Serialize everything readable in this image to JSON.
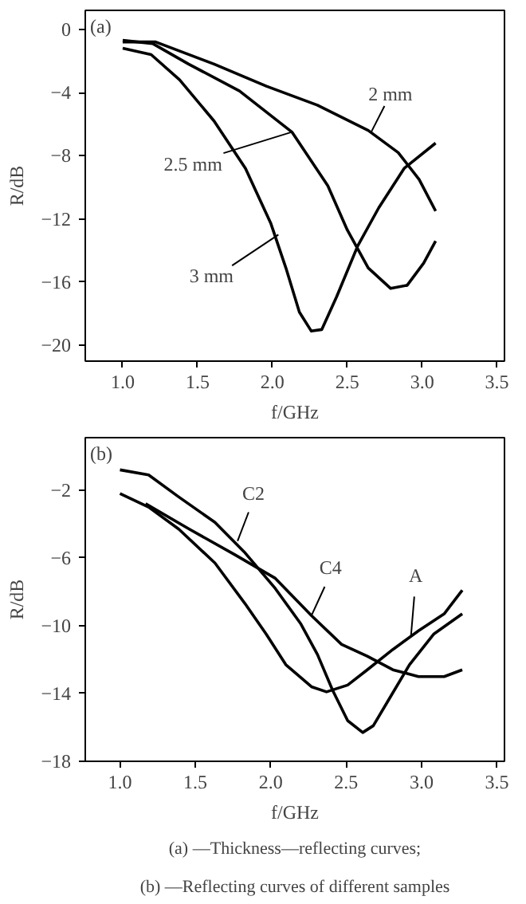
{
  "chart_data": [
    {
      "type": "line",
      "title": "(a)",
      "xlabel": "f/GHz",
      "ylabel": "R/dB",
      "xlim": [
        0.75,
        3.55
      ],
      "ylim": [
        -21,
        1.2
      ],
      "xticks": [
        {
          "value": 1,
          "label": "1.0"
        },
        1.5,
        {
          "value": 2,
          "label": "2.0"
        },
        2.5,
        {
          "value": 3,
          "label": "3.0"
        },
        3.5
      ],
      "yticks": [
        0,
        -4,
        -8,
        -12,
        -16,
        -20
      ],
      "grid": false,
      "marker": "none",
      "line_style": "solid",
      "series": [
        {
          "color": "#000000",
          "x": [
            1.0,
            1.22,
            1.61,
            1.96,
            2.3,
            2.64,
            2.84,
            2.98,
            3.09
          ],
          "values": [
            -0.8,
            -0.8,
            -2.2,
            -3.6,
            -4.8,
            -6.4,
            -7.8,
            -9.5,
            -11.5
          ]
        },
        {
          "color": "#000000",
          "x": [
            1.0,
            1.2,
            1.44,
            1.78,
            2.13,
            2.37,
            2.5,
            2.64,
            2.79,
            2.9,
            3.01,
            3.09
          ],
          "values": [
            -0.7,
            -0.9,
            -2.2,
            -3.9,
            -6.5,
            -9.9,
            -12.7,
            -15.1,
            -16.4,
            -16.2,
            -14.8,
            -13.4
          ]
        },
        {
          "color": "#000000",
          "x": [
            1.0,
            1.19,
            1.38,
            1.61,
            1.82,
            1.99,
            2.09,
            2.18,
            2.26,
            2.33,
            2.43,
            2.57,
            2.71,
            2.88,
            3.09
          ],
          "values": [
            -1.2,
            -1.6,
            -3.2,
            -5.8,
            -8.8,
            -12.3,
            -15.1,
            -17.9,
            -19.1,
            -19.0,
            -16.9,
            -13.7,
            -11.3,
            -8.8,
            -7.2
          ]
        }
      ],
      "annotations": [
        {
          "text": "2 mm",
          "x": 2.66,
          "y": -6.5
        },
        {
          "text": "2.5 mm",
          "x": 2.13,
          "y": -6.5
        },
        {
          "text": "3 mm",
          "x": 2.04,
          "y": -13.0
        }
      ]
    },
    {
      "type": "line",
      "title": "(b)",
      "xlabel": "f/GHz",
      "ylabel": "R/dB",
      "xlim": [
        0.77,
        3.55
      ],
      "ylim": [
        -18,
        1.1
      ],
      "xticks": [
        {
          "value": 1,
          "label": "1.0"
        },
        1.5,
        {
          "value": 2,
          "label": "2.0"
        },
        2.5,
        {
          "value": 3,
          "label": "3.0"
        },
        3.5
      ],
      "yticks": [
        -2,
        -6,
        -10,
        -14,
        -18
      ],
      "grid": false,
      "marker": "none",
      "line_style": "solid",
      "series": [
        {
          "color": "#000000",
          "x": [
            1.0,
            1.19,
            1.39,
            1.63,
            1.83,
            2.03,
            2.2,
            2.31,
            2.41,
            2.51,
            2.61,
            2.68,
            2.78,
            2.92,
            3.08,
            3.27
          ],
          "values": [
            -0.8,
            -1.1,
            -2.4,
            -3.9,
            -5.7,
            -7.8,
            -9.9,
            -11.7,
            -13.8,
            -15.6,
            -16.3,
            -15.9,
            -14.4,
            -12.3,
            -10.5,
            -9.3
          ]
        },
        {
          "color": "#000000",
          "x": [
            1.17,
            1.46,
            1.76,
            2.03,
            2.27,
            2.47,
            2.64,
            2.81,
            2.98,
            3.15,
            3.27
          ],
          "values": [
            -2.8,
            -4.3,
            -5.8,
            -7.2,
            -9.4,
            -11.1,
            -11.8,
            -12.6,
            -13.0,
            -13.0,
            -12.6
          ]
        },
        {
          "color": "#000000",
          "x": [
            1.0,
            1.19,
            1.39,
            1.63,
            1.83,
            1.97,
            2.1,
            2.27,
            2.37,
            2.51,
            2.64,
            2.81,
            2.98,
            3.15,
            3.27
          ],
          "values": [
            -2.2,
            -3.0,
            -4.3,
            -6.3,
            -8.7,
            -10.5,
            -12.3,
            -13.6,
            -13.9,
            -13.5,
            -12.6,
            -11.4,
            -10.3,
            -9.3,
            -7.9
          ]
        }
      ],
      "annotations": [
        {
          "text": "C2",
          "x": 1.78,
          "y": -5.0
        },
        {
          "text": "C4",
          "x": 2.27,
          "y": -9.4
        },
        {
          "text": "A",
          "x": 2.93,
          "y": -10.6
        },
        "(a) —Thickness—reflecting curves;",
        "(b) —Reflecting curves of different samples"
      ]
    }
  ]
}
